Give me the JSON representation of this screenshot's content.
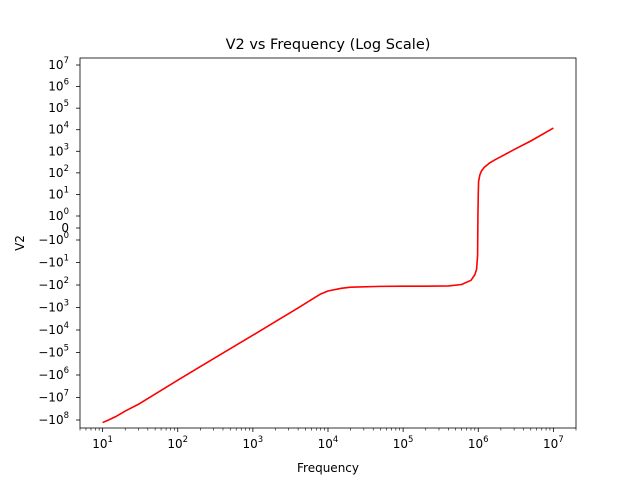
{
  "chart_data": {
    "type": "line",
    "title": "V2 vs Frequency (Log Scale)",
    "xlabel": "Frequency",
    "ylabel": "V2",
    "xscale": "log",
    "yscale": "symlog",
    "xlim": [
      5,
      20000000
    ],
    "grid": false,
    "legend": "none",
    "x_ticks": [
      {
        "base": "10",
        "exp": "1",
        "value": 10
      },
      {
        "base": "10",
        "exp": "2",
        "value": 100
      },
      {
        "base": "10",
        "exp": "3",
        "value": 1000
      },
      {
        "base": "10",
        "exp": "4",
        "value": 10000
      },
      {
        "base": "10",
        "exp": "5",
        "value": 100000
      },
      {
        "base": "10",
        "exp": "6",
        "value": 1000000
      },
      {
        "base": "10",
        "exp": "7",
        "value": 10000000
      }
    ],
    "y_ticks": [
      {
        "base": "10",
        "exp": "7",
        "value": 10000000
      },
      {
        "base": "10",
        "exp": "6",
        "value": 1000000
      },
      {
        "base": "10",
        "exp": "5",
        "value": 100000
      },
      {
        "base": "10",
        "exp": "4",
        "value": 10000
      },
      {
        "base": "10",
        "exp": "3",
        "value": 1000
      },
      {
        "base": "10",
        "exp": "2",
        "value": 100
      },
      {
        "base": "10",
        "exp": "1",
        "value": 10
      },
      {
        "base": "10",
        "exp": "0",
        "value": 1
      },
      {
        "base": "0",
        "exp": "",
        "value": 0
      },
      {
        "base": "−10",
        "exp": "0",
        "value": -1
      },
      {
        "base": "−10",
        "exp": "1",
        "value": -10
      },
      {
        "base": "−10",
        "exp": "2",
        "value": -100
      },
      {
        "base": "−10",
        "exp": "3",
        "value": -1000
      },
      {
        "base": "−10",
        "exp": "4",
        "value": -10000
      },
      {
        "base": "−10",
        "exp": "5",
        "value": -100000
      },
      {
        "base": "−10",
        "exp": "6",
        "value": -1000000
      },
      {
        "base": "−10",
        "exp": "7",
        "value": -10000000
      },
      {
        "base": "−10",
        "exp": "8",
        "value": -100000000
      }
    ],
    "series": [
      {
        "color": "#ff0000",
        "x": [
          10,
          12,
          15,
          20,
          30,
          50,
          100,
          200,
          500,
          1000,
          2000,
          4000,
          6000,
          8000,
          10000,
          15000,
          20000,
          50000,
          100000,
          200000,
          400000,
          600000,
          800000,
          900000,
          950000,
          980000,
          990000,
          1000000,
          1010000,
          1050000,
          1100000,
          1200000,
          1400000,
          1700000,
          2000000,
          3000000,
          5000000,
          10000000
        ],
        "y": [
          -130000000,
          -100000000,
          -70000000,
          -40000000,
          -20000000,
          -7000000,
          -1700000,
          -420000,
          -68000,
          -17000,
          -4200,
          -1050,
          -450,
          -250,
          -185,
          -140,
          -125,
          -115,
          -113,
          -113,
          -110,
          -95,
          -62,
          -35,
          -20,
          -5,
          1,
          10,
          40,
          80,
          120,
          180,
          280,
          420,
          560,
          1200,
          3000,
          12000
        ]
      }
    ]
  }
}
